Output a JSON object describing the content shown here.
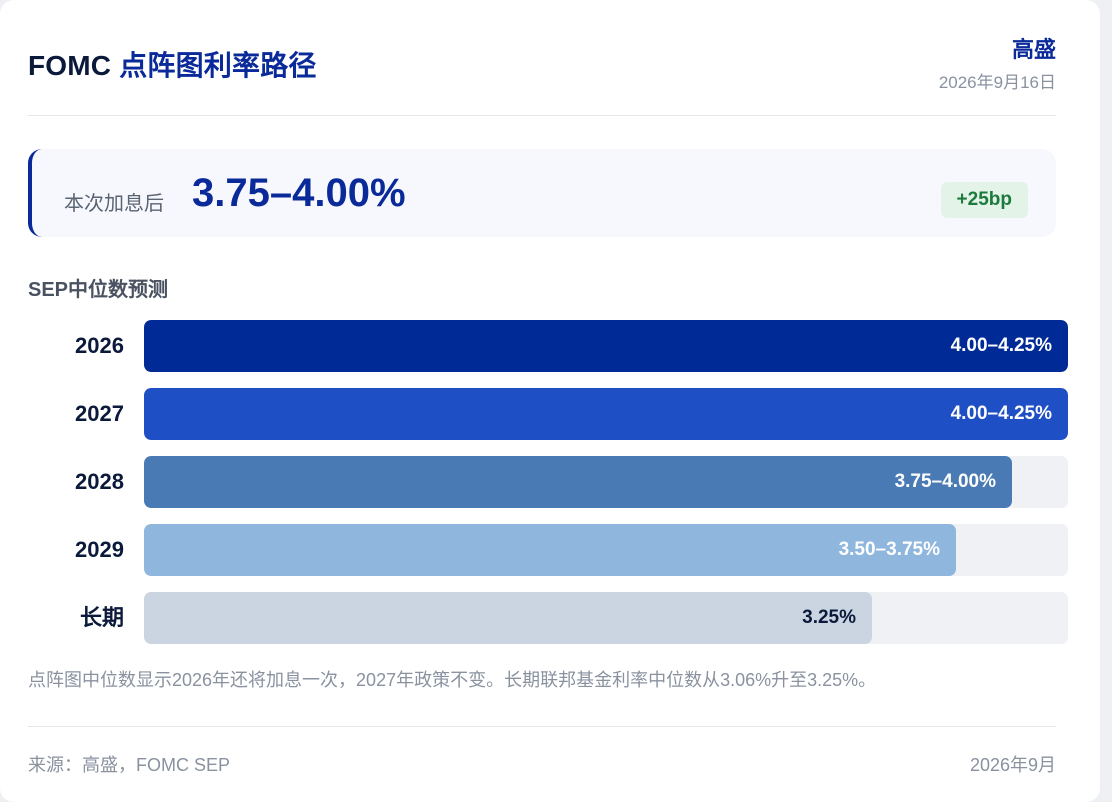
{
  "header": {
    "title_prefix": "FOMC",
    "title_accent": "点阵图利率路径",
    "brand": "高盛",
    "date": "2026年9月16日"
  },
  "rate_box": {
    "label": "本次加息后",
    "value": "3.75–4.00%",
    "change": "+25bp",
    "accent_color": "#0a2a9a",
    "change_color": "#1d7a3e"
  },
  "section_label": "SEP中位数预测",
  "chart_data": {
    "type": "bar",
    "orientation": "horizontal",
    "categories": [
      "2026",
      "2027",
      "2028",
      "2029",
      "长期"
    ],
    "values": [
      4.125,
      4.125,
      3.875,
      3.625,
      3.25
    ],
    "labels": [
      "4.00–4.25%",
      "4.00–4.25%",
      "3.75–4.00%",
      "3.50–3.75%",
      "3.25%"
    ],
    "xlim": [
      0,
      4.125
    ],
    "colors": [
      "#002a96",
      "#1f4fc4",
      "#4a7ab4",
      "#8fb6dd",
      "#cbd5e1"
    ],
    "label_colors": [
      "#ffffff",
      "#ffffff",
      "#ffffff",
      "#ffffff",
      "#0b1a3a"
    ],
    "grid": false
  },
  "note": "点阵图中位数显示2026年还将加息一次，2027年政策不变。长期联邦基金利率中位数从3.06%升至3.25%。",
  "footer": {
    "source": "来源：高盛，FOMC SEP",
    "date": "2026年9月"
  }
}
